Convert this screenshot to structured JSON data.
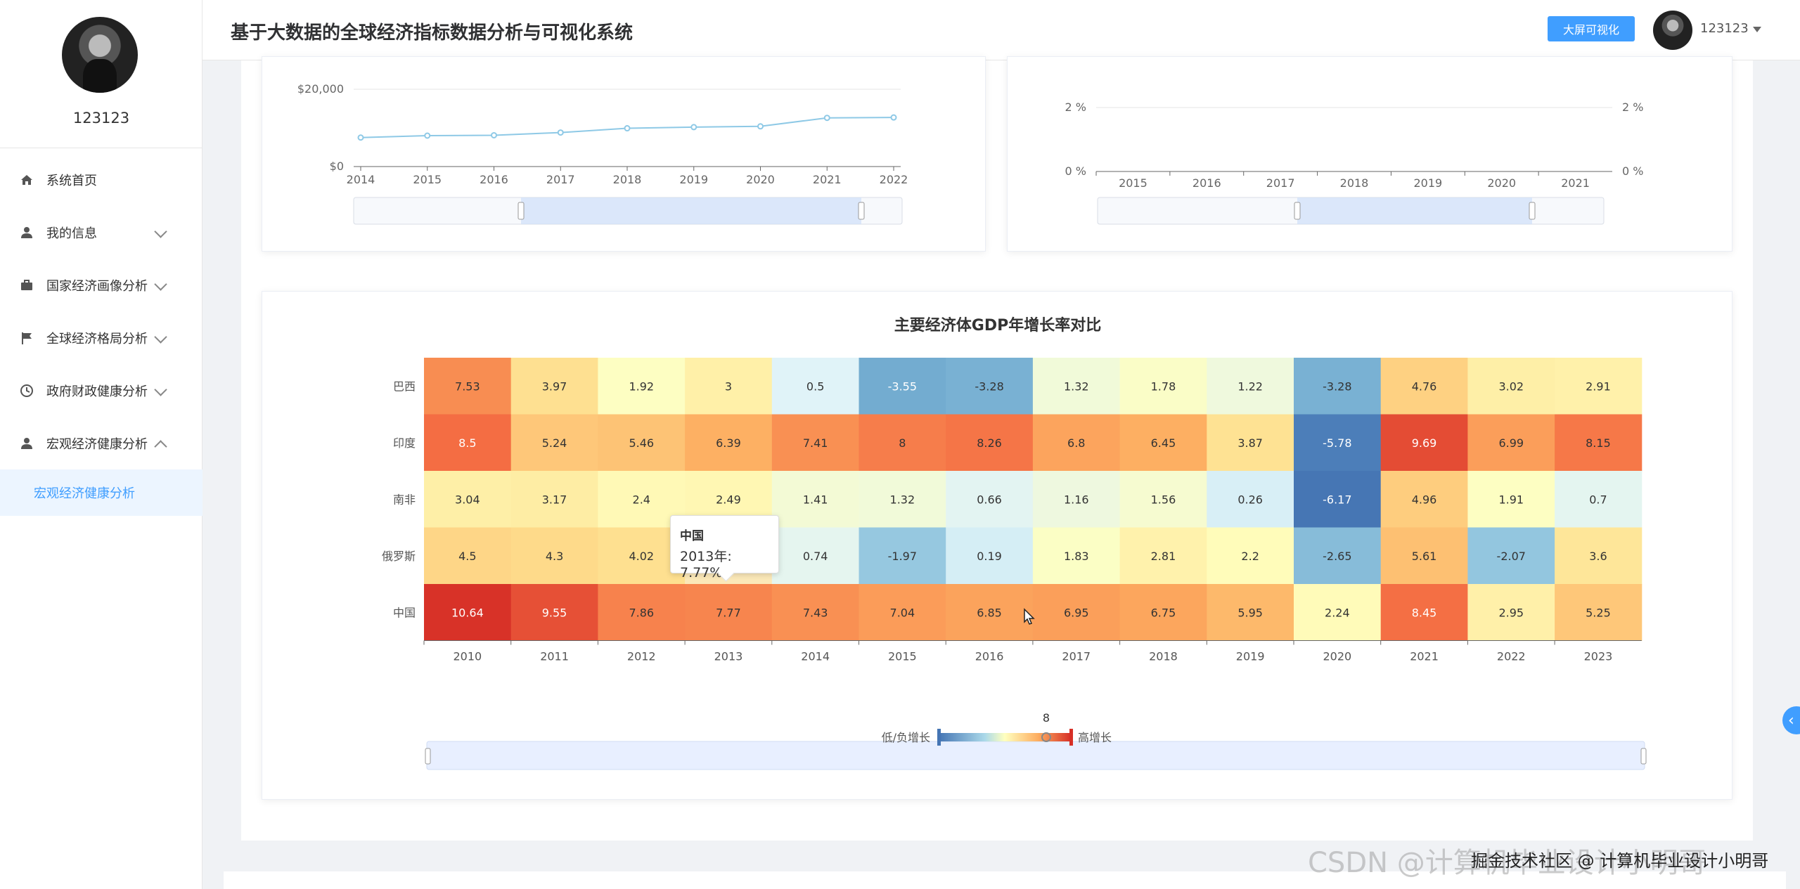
{
  "sidebar": {
    "username": "123123",
    "items": [
      {
        "label": "系统首页",
        "icon": "home-icon"
      },
      {
        "label": "我的信息",
        "icon": "user-icon"
      },
      {
        "label": "国家经济画像分析",
        "icon": "briefcase-icon"
      },
      {
        "label": "全球经济格局分析",
        "icon": "flag-icon"
      },
      {
        "label": "政府财政健康分析",
        "icon": "clock-icon"
      },
      {
        "label": "宏观经济健康分析",
        "icon": "user-icon"
      }
    ],
    "active_sub": "宏观经济健康分析"
  },
  "header": {
    "title": "基于大数据的全球经济指标数据分析与可视化系统",
    "big_screen_button": "大屏可视化",
    "user": "123123"
  },
  "chart_data": [
    {
      "type": "line",
      "x": [
        "2014",
        "2015",
        "2016",
        "2017",
        "2018",
        "2019",
        "2020",
        "2021",
        "2022"
      ],
      "y_ticks": [
        "$0",
        "$20,000"
      ],
      "series": [
        {
          "values": [
            7500,
            8000,
            8100,
            8800,
            9900,
            10200,
            10400,
            12600,
            12700
          ]
        }
      ],
      "ylim": [
        0,
        20000
      ],
      "color": "#8ec9e6"
    },
    {
      "type": "line",
      "x": [
        "2015",
        "2016",
        "2017",
        "2018",
        "2019",
        "2020",
        "2021"
      ],
      "y_ticks_left": [
        "0 %",
        "2 %"
      ],
      "y_ticks_right": [
        "0 %",
        "2 %"
      ]
    },
    {
      "type": "heatmap",
      "title": "主要经济体GDP年增长率对比",
      "x": [
        "2010",
        "2011",
        "2012",
        "2013",
        "2014",
        "2015",
        "2016",
        "2017",
        "2018",
        "2019",
        "2020",
        "2021",
        "2022",
        "2023"
      ],
      "y": [
        "巴西",
        "印度",
        "南非",
        "俄罗斯",
        "中国"
      ],
      "values": [
        [
          7.53,
          3.97,
          1.92,
          3,
          0.5,
          -3.55,
          -3.28,
          1.32,
          1.78,
          1.22,
          -3.28,
          4.76,
          3.02,
          2.91
        ],
        [
          8.5,
          5.24,
          5.46,
          6.39,
          7.41,
          8,
          8.26,
          6.8,
          6.45,
          3.87,
          -5.78,
          9.69,
          6.99,
          8.15
        ],
        [
          3.04,
          3.17,
          2.4,
          2.49,
          1.41,
          1.32,
          0.66,
          1.16,
          1.56,
          0.26,
          -6.17,
          4.96,
          1.91,
          0.7
        ],
        [
          4.5,
          4.3,
          4.02,
          null,
          0.74,
          -1.97,
          0.19,
          1.83,
          2.81,
          2.2,
          -2.65,
          5.61,
          -2.07,
          3.6
        ],
        [
          10.64,
          9.55,
          7.86,
          7.77,
          7.43,
          7.04,
          6.85,
          6.95,
          6.75,
          5.95,
          2.24,
          8.45,
          2.95,
          5.25
        ]
      ],
      "visual_map": {
        "low_label": "低/负增长",
        "high_label": "高增长",
        "current": "8"
      },
      "tooltip": {
        "name": "中国",
        "text": "2013年: 7.77%"
      }
    }
  ],
  "watermark": "CSDN @计算机毕业设计小明哥",
  "watermark2": "掘金技术社区 @ 计算机毕业设计小明哥"
}
